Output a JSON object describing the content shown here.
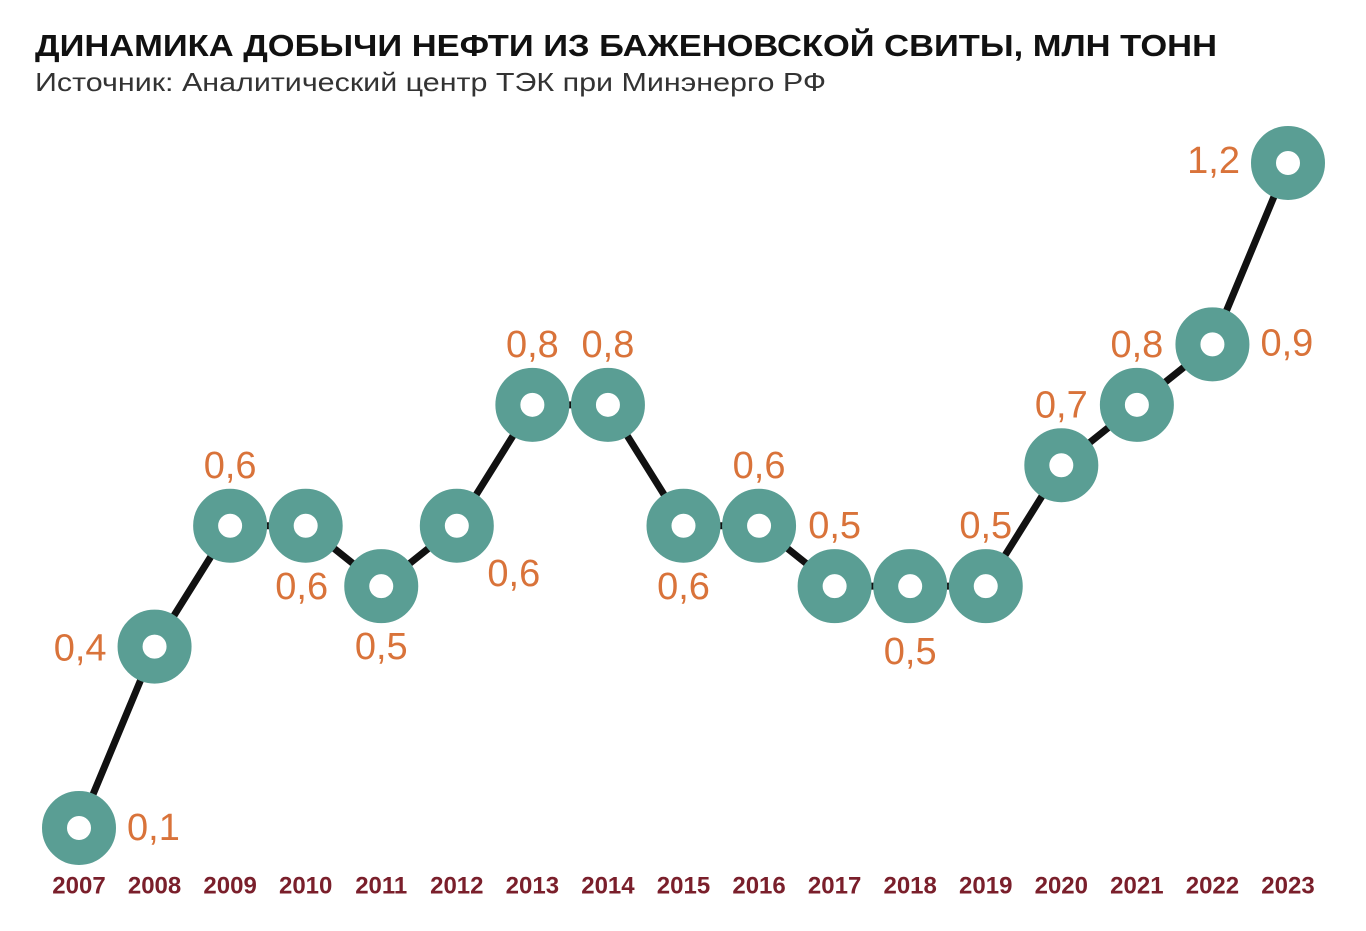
{
  "chart_data": {
    "type": "line",
    "title": "ДИНАМИКА ДОБЫЧИ НЕФТИ ИЗ БАЖЕНОВСКОЙ СВИТЫ, МЛН ТОНН",
    "subtitle": "Источник: Аналитический центр ТЭК при Минэнерго РФ",
    "categories": [
      "2007",
      "2008",
      "2009",
      "2010",
      "2011",
      "2012",
      "2013",
      "2014",
      "2015",
      "2016",
      "2017",
      "2018",
      "2019",
      "2020",
      "2021",
      "2022",
      "2023"
    ],
    "values": [
      0.1,
      0.4,
      0.6,
      0.6,
      0.5,
      0.6,
      0.8,
      0.8,
      0.6,
      0.6,
      0.5,
      0.5,
      0.5,
      0.7,
      0.8,
      0.9,
      1.2
    ],
    "value_labels": [
      "0,1",
      "0,4",
      "0,6",
      "0,6",
      "0,5",
      "0,6",
      "0,8",
      "0,8",
      "0,6",
      "0,6",
      "0,5",
      "0,5",
      "0,5",
      "0,7",
      "0,8",
      "0,9",
      "1,2"
    ],
    "color": "#5a9e94",
    "line_color": "#111111"
  }
}
